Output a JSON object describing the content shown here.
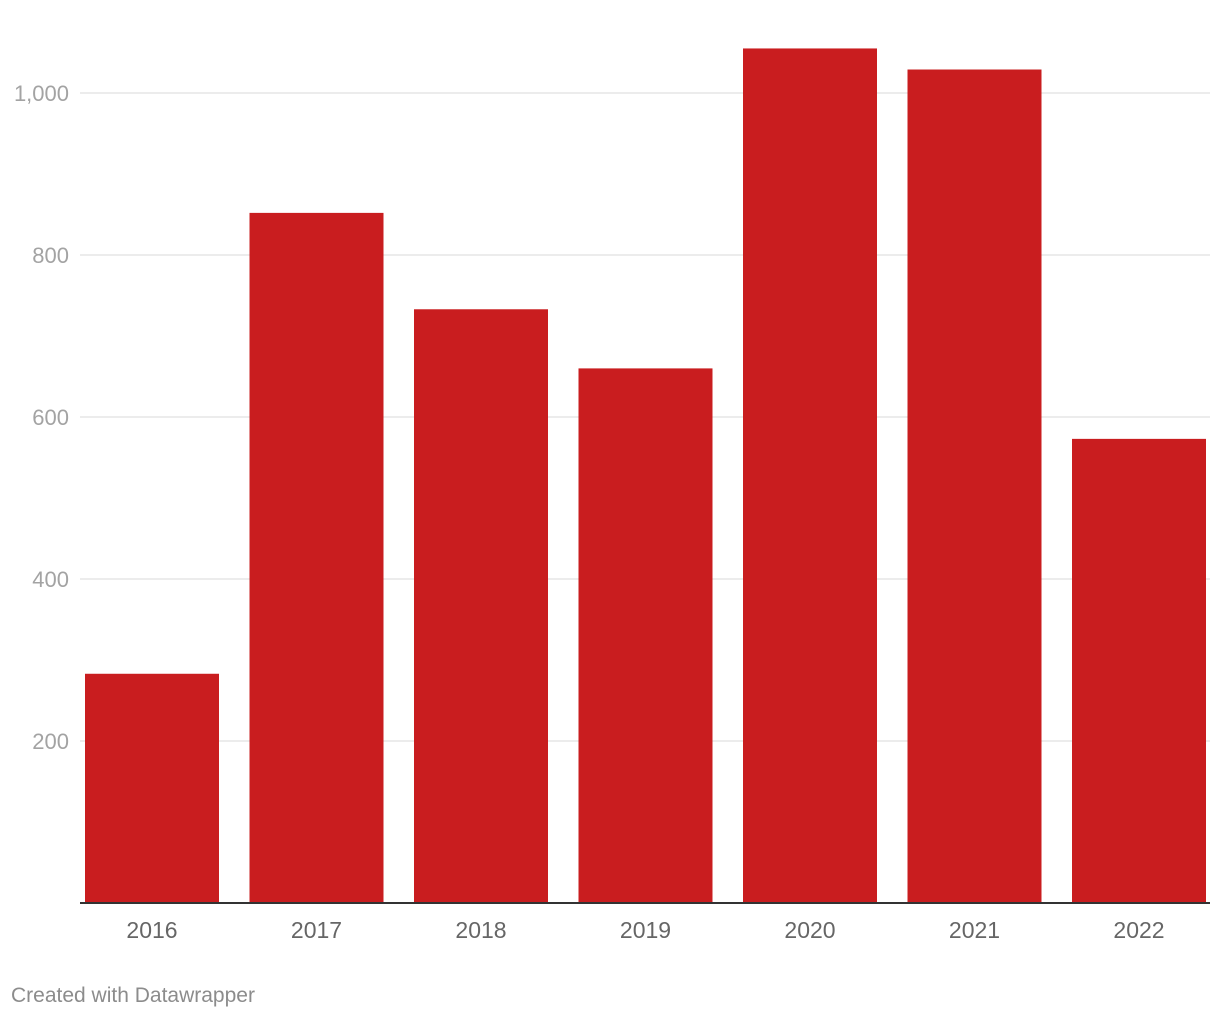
{
  "chart_data": {
    "type": "bar",
    "title": "",
    "xlabel": "",
    "ylabel": "",
    "categories": [
      "2016",
      "2017",
      "2018",
      "2019",
      "2020",
      "2021",
      "2022"
    ],
    "values": [
      283,
      852,
      733,
      660,
      1055,
      1029,
      573
    ],
    "ylim": [
      0,
      1080
    ],
    "yticks": [
      200,
      400,
      600,
      800,
      1000
    ],
    "ytick_labels": [
      "200",
      "400",
      "600",
      "800",
      "1,000"
    ],
    "grid": true,
    "legend": "none",
    "bar_color": "#c91d1f",
    "gridline_color": "#e5e5e5",
    "baseline_color": "#333333"
  },
  "footer": {
    "credit": "Created with Datawrapper"
  }
}
